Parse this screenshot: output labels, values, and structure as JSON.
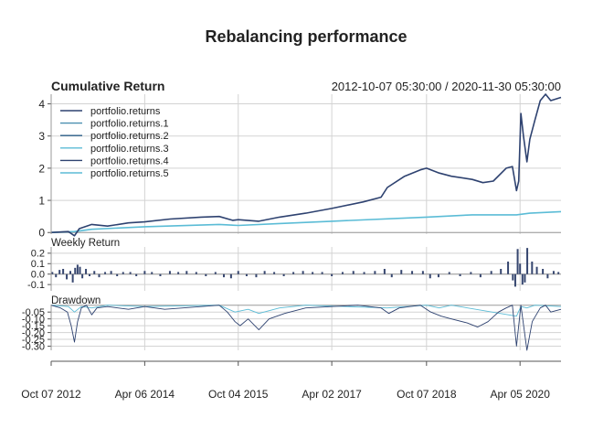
{
  "chart_data": {
    "type": "line",
    "title": "Rebalancing performance",
    "date_range": "2012-10-07 05:30:00 / 2020-11-30 05:30:00",
    "x_range": [
      "2012-10-07",
      "2020-11-30"
    ],
    "x_ticks": [
      "Oct 07 2012",
      "Apr 06 2014",
      "Oct 04 2015",
      "Apr 02 2017",
      "Oct 07 2018",
      "Apr 05 2020"
    ],
    "x_tick_dates": [
      "2012-10-07",
      "2014-04-06",
      "2015-10-04",
      "2017-04-02",
      "2018-10-07",
      "2020-04-05"
    ],
    "colors": {
      "dark": "#2e4270",
      "light": "#5bbcd6",
      "grid": "#d3d3d3",
      "axis": "#9a9a9a",
      "bar": "#36466f"
    },
    "legend": {
      "position": "top-left",
      "entries": [
        {
          "label": "portfolio.returns",
          "color": "#2e4270"
        },
        {
          "label": "portfolio.returns.1",
          "color": "#4a8fb0"
        },
        {
          "label": "portfolio.returns.2",
          "color": "#2d5f8a"
        },
        {
          "label": "portfolio.returns.3",
          "color": "#5bbcd6"
        },
        {
          "label": "portfolio.returns.4",
          "color": "#2e4270"
        },
        {
          "label": "portfolio.returns.5",
          "color": "#5bbcd6"
        }
      ]
    },
    "panels": [
      {
        "title": "Cumulative Return",
        "ylim": [
          -0.05,
          4.3
        ],
        "y_ticks": [
          0,
          1,
          2,
          3,
          4
        ],
        "y_tick_labels": [
          "0",
          "1",
          "2",
          "3",
          "4"
        ],
        "series": [
          {
            "name": "portfolio.returns",
            "color": "#2e4270",
            "points": [
              [
                "2012-10-07",
                0.0
              ],
              [
                "2013-01-15",
                0.03
              ],
              [
                "2013-02-20",
                -0.1
              ],
              [
                "2013-03-20",
                0.12
              ],
              [
                "2013-06-01",
                0.25
              ],
              [
                "2013-09-01",
                0.2
              ],
              [
                "2014-01-01",
                0.3
              ],
              [
                "2014-04-06",
                0.33
              ],
              [
                "2014-09-01",
                0.42
              ],
              [
                "2015-03-01",
                0.48
              ],
              [
                "2015-06-15",
                0.5
              ],
              [
                "2015-09-01",
                0.38
              ],
              [
                "2015-10-04",
                0.4
              ],
              [
                "2016-02-01",
                0.35
              ],
              [
                "2016-06-01",
                0.48
              ],
              [
                "2016-11-01",
                0.6
              ],
              [
                "2017-04-02",
                0.75
              ],
              [
                "2017-10-01",
                0.95
              ],
              [
                "2018-01-15",
                1.1
              ],
              [
                "2018-02-20",
                1.4
              ],
              [
                "2018-06-01",
                1.75
              ],
              [
                "2018-09-01",
                1.95
              ],
              [
                "2018-10-07",
                2.0
              ],
              [
                "2018-12-20",
                1.85
              ],
              [
                "2019-03-01",
                1.75
              ],
              [
                "2019-07-01",
                1.65
              ],
              [
                "2019-09-01",
                1.55
              ],
              [
                "2019-11-01",
                1.6
              ],
              [
                "2020-01-15",
                2.0
              ],
              [
                "2020-02-20",
                2.05
              ],
              [
                "2020-03-15",
                1.3
              ],
              [
                "2020-03-28",
                1.6
              ],
              [
                "2020-04-10",
                3.7
              ],
              [
                "2020-04-25",
                3.0
              ],
              [
                "2020-05-15",
                2.2
              ],
              [
                "2020-06-01",
                2.9
              ],
              [
                "2020-07-01",
                3.5
              ],
              [
                "2020-08-01",
                4.1
              ],
              [
                "2020-09-01",
                4.3
              ],
              [
                "2020-10-01",
                4.1
              ],
              [
                "2020-11-30",
                4.2
              ]
            ]
          },
          {
            "name": "portfolio.returns.5",
            "color": "#5bbcd6",
            "points": [
              [
                "2012-10-07",
                0.0
              ],
              [
                "2013-02-20",
                0.03
              ],
              [
                "2013-06-01",
                0.1
              ],
              [
                "2014-04-06",
                0.18
              ],
              [
                "2015-06-15",
                0.25
              ],
              [
                "2015-10-04",
                0.22
              ],
              [
                "2016-06-01",
                0.28
              ],
              [
                "2017-04-02",
                0.35
              ],
              [
                "2018-10-07",
                0.48
              ],
              [
                "2019-07-01",
                0.55
              ],
              [
                "2020-03-15",
                0.55
              ],
              [
                "2020-06-01",
                0.6
              ],
              [
                "2020-11-30",
                0.65
              ]
            ]
          }
        ]
      },
      {
        "title": "Weekly Return",
        "ylim": [
          -0.16,
          0.26
        ],
        "y_ticks": [
          -0.1,
          0.0,
          0.1,
          0.2
        ],
        "y_tick_labels": [
          "-0.1",
          "0.0",
          "0.1",
          "0.2"
        ],
        "bars": [
          [
            "2012-10-14",
            0.02
          ],
          [
            "2012-11-04",
            -0.03
          ],
          [
            "2012-11-25",
            0.04
          ],
          [
            "2012-12-16",
            0.05
          ],
          [
            "2013-01-06",
            -0.05
          ],
          [
            "2013-01-27",
            0.03
          ],
          [
            "2013-02-10",
            -0.08
          ],
          [
            "2013-02-24",
            0.06
          ],
          [
            "2013-03-10",
            0.09
          ],
          [
            "2013-03-24",
            0.07
          ],
          [
            "2013-04-07",
            -0.04
          ],
          [
            "2013-04-28",
            0.05
          ],
          [
            "2013-05-19",
            -0.02
          ],
          [
            "2013-06-16",
            0.03
          ],
          [
            "2013-07-14",
            -0.03
          ],
          [
            "2013-08-18",
            0.02
          ],
          [
            "2013-09-22",
            0.03
          ],
          [
            "2013-10-27",
            -0.02
          ],
          [
            "2013-12-01",
            0.02
          ],
          [
            "2014-01-12",
            0.02
          ],
          [
            "2014-02-16",
            -0.02
          ],
          [
            "2014-04-06",
            0.03
          ],
          [
            "2014-05-18",
            0.02
          ],
          [
            "2014-07-06",
            -0.02
          ],
          [
            "2014-08-31",
            0.03
          ],
          [
            "2014-10-19",
            0.02
          ],
          [
            "2014-12-07",
            0.03
          ],
          [
            "2015-02-01",
            0.02
          ],
          [
            "2015-03-29",
            -0.02
          ],
          [
            "2015-05-24",
            0.02
          ],
          [
            "2015-07-12",
            -0.03
          ],
          [
            "2015-08-23",
            -0.04
          ],
          [
            "2015-10-04",
            0.03
          ],
          [
            "2015-11-22",
            -0.02
          ],
          [
            "2016-01-17",
            -0.03
          ],
          [
            "2016-03-06",
            0.03
          ],
          [
            "2016-05-01",
            0.02
          ],
          [
            "2016-06-26",
            -0.02
          ],
          [
            "2016-08-21",
            0.02
          ],
          [
            "2016-10-16",
            0.03
          ],
          [
            "2016-12-11",
            0.02
          ],
          [
            "2017-02-05",
            0.02
          ],
          [
            "2017-04-02",
            -0.02
          ],
          [
            "2017-06-04",
            0.02
          ],
          [
            "2017-08-06",
            0.03
          ],
          [
            "2017-10-08",
            0.02
          ],
          [
            "2017-12-10",
            0.03
          ],
          [
            "2018-02-04",
            0.05
          ],
          [
            "2018-03-18",
            -0.03
          ],
          [
            "2018-05-13",
            0.04
          ],
          [
            "2018-07-15",
            0.03
          ],
          [
            "2018-09-16",
            0.03
          ],
          [
            "2018-10-28",
            -0.04
          ],
          [
            "2018-12-16",
            -0.03
          ],
          [
            "2019-02-17",
            0.02
          ],
          [
            "2019-04-21",
            -0.02
          ],
          [
            "2019-06-23",
            0.02
          ],
          [
            "2019-08-18",
            -0.03
          ],
          [
            "2019-10-20",
            0.03
          ],
          [
            "2019-12-15",
            0.05
          ],
          [
            "2020-01-26",
            0.12
          ],
          [
            "2020-02-23",
            -0.06
          ],
          [
            "2020-03-08",
            -0.12
          ],
          [
            "2020-03-22",
            0.24
          ],
          [
            "2020-04-05",
            0.1
          ],
          [
            "2020-04-19",
            -0.1
          ],
          [
            "2020-05-03",
            -0.08
          ],
          [
            "2020-05-17",
            0.25
          ],
          [
            "2020-06-14",
            0.12
          ],
          [
            "2020-07-12",
            0.07
          ],
          [
            "2020-08-16",
            0.05
          ],
          [
            "2020-09-13",
            -0.04
          ],
          [
            "2020-10-18",
            0.03
          ],
          [
            "2020-11-15",
            0.02
          ]
        ]
      },
      {
        "title": "Drawdown",
        "ylim": [
          -0.33,
          0.005
        ],
        "y_ticks": [
          -0.05,
          -0.1,
          -0.15,
          -0.2,
          -0.25,
          -0.3
        ],
        "y_tick_labels": [
          "-0.05",
          "-0.10",
          "-0.15",
          "-0.20",
          "-0.25",
          "-0.30"
        ],
        "series": [
          {
            "name": "portfolio.returns",
            "color": "#2e4270",
            "points": [
              [
                "2012-10-07",
                0.0
              ],
              [
                "2012-12-01",
                -0.02
              ],
              [
                "2013-01-10",
                -0.05
              ],
              [
                "2013-02-01",
                -0.15
              ],
              [
                "2013-02-20",
                -0.27
              ],
              [
                "2013-03-10",
                -0.12
              ],
              [
                "2013-04-01",
                -0.02
              ],
              [
                "2013-05-01",
                0.0
              ],
              [
                "2013-06-01",
                -0.07
              ],
              [
                "2013-07-01",
                -0.02
              ],
              [
                "2013-09-01",
                -0.01
              ],
              [
                "2014-01-01",
                -0.03
              ],
              [
                "2014-04-06",
                -0.01
              ],
              [
                "2014-08-01",
                -0.03
              ],
              [
                "2015-03-01",
                -0.01
              ],
              [
                "2015-06-15",
                0.0
              ],
              [
                "2015-08-01",
                -0.05
              ],
              [
                "2015-09-15",
                -0.12
              ],
              [
                "2015-10-15",
                -0.15
              ],
              [
                "2015-12-01",
                -0.1
              ],
              [
                "2016-02-01",
                -0.18
              ],
              [
                "2016-04-01",
                -0.1
              ],
              [
                "2016-07-01",
                -0.06
              ],
              [
                "2016-11-01",
                -0.02
              ],
              [
                "2017-04-02",
                -0.01
              ],
              [
                "2017-09-01",
                0.0
              ],
              [
                "2018-01-15",
                -0.02
              ],
              [
                "2018-03-01",
                -0.06
              ],
              [
                "2018-05-01",
                -0.02
              ],
              [
                "2018-09-01",
                0.0
              ],
              [
                "2018-11-01",
                -0.05
              ],
              [
                "2019-01-01",
                -0.08
              ],
              [
                "2019-03-01",
                -0.1
              ],
              [
                "2019-06-01",
                -0.13
              ],
              [
                "2019-08-01",
                -0.16
              ],
              [
                "2019-10-01",
                -0.12
              ],
              [
                "2019-12-01",
                -0.05
              ],
              [
                "2020-01-15",
                -0.02
              ],
              [
                "2020-02-20",
                0.0
              ],
              [
                "2020-03-15",
                -0.3
              ],
              [
                "2020-04-10",
                0.0
              ],
              [
                "2020-05-15",
                -0.33
              ],
              [
                "2020-06-15",
                -0.12
              ],
              [
                "2020-08-01",
                -0.02
              ],
              [
                "2020-09-01",
                0.0
              ],
              [
                "2020-10-01",
                -0.05
              ],
              [
                "2020-11-30",
                -0.03
              ]
            ]
          },
          {
            "name": "portfolio.returns.5",
            "color": "#5bbcd6",
            "points": [
              [
                "2012-10-07",
                0.0
              ],
              [
                "2013-01-15",
                -0.01
              ],
              [
                "2013-02-20",
                -0.05
              ],
              [
                "2013-04-01",
                -0.01
              ],
              [
                "2013-06-01",
                -0.02
              ],
              [
                "2013-09-01",
                0.0
              ],
              [
                "2014-04-06",
                -0.01
              ],
              [
                "2015-06-15",
                0.0
              ],
              [
                "2015-09-15",
                -0.05
              ],
              [
                "2015-12-01",
                -0.03
              ],
              [
                "2016-02-01",
                -0.06
              ],
              [
                "2016-06-01",
                -0.02
              ],
              [
                "2016-11-01",
                0.0
              ],
              [
                "2018-02-20",
                -0.02
              ],
              [
                "2018-10-07",
                0.0
              ],
              [
                "2018-12-20",
                -0.02
              ],
              [
                "2019-03-01",
                0.0
              ],
              [
                "2020-03-15",
                -0.08
              ],
              [
                "2020-04-10",
                -0.01
              ],
              [
                "2020-05-15",
                -0.02
              ],
              [
                "2020-07-01",
                0.0
              ],
              [
                "2020-11-30",
                -0.01
              ]
            ]
          }
        ]
      }
    ]
  }
}
